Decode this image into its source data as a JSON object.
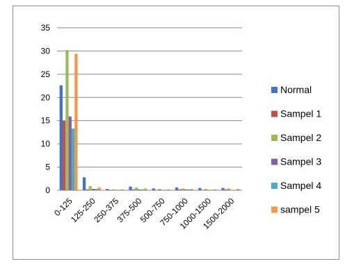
{
  "chart_data": {
    "type": "bar",
    "title": "",
    "xlabel": "",
    "ylabel": "",
    "ylim": [
      0,
      35
    ],
    "yticks": [
      0,
      5,
      10,
      15,
      20,
      25,
      30,
      35
    ],
    "grid": true,
    "legend": "right",
    "categories": [
      "0-125",
      "125-250",
      "250-375",
      "375-500",
      "500-750",
      "750-1000",
      "1000-1500",
      "1500-2000"
    ],
    "series": [
      {
        "name": "Normal",
        "color": "#4472C4",
        "values": [
          22.6,
          2.8,
          0.3,
          0.8,
          0.4,
          0.6,
          0.5,
          0.5
        ]
      },
      {
        "name": "Sampel 1",
        "color": "#C0504D",
        "values": [
          15.0,
          0.2,
          0.1,
          0.2,
          0.1,
          0.2,
          0.1,
          0.2
        ]
      },
      {
        "name": "Sampel 2",
        "color": "#9BBB59",
        "values": [
          30.2,
          0.9,
          0.2,
          0.6,
          0.3,
          0.4,
          0.3,
          0.4
        ]
      },
      {
        "name": "Sampel 3",
        "color": "#8064A2",
        "values": [
          15.9,
          0.3,
          0.1,
          0.2,
          0.1,
          0.2,
          0.1,
          0.1
        ]
      },
      {
        "name": "Sampel 4",
        "color": "#4BACC6",
        "values": [
          13.3,
          0.3,
          0.1,
          0.2,
          0.1,
          0.2,
          0.1,
          0.1
        ]
      },
      {
        "name": "sampel 5",
        "color": "#F79646",
        "values": [
          29.4,
          0.6,
          0.2,
          0.4,
          0.2,
          0.3,
          0.2,
          0.3
        ]
      }
    ]
  }
}
